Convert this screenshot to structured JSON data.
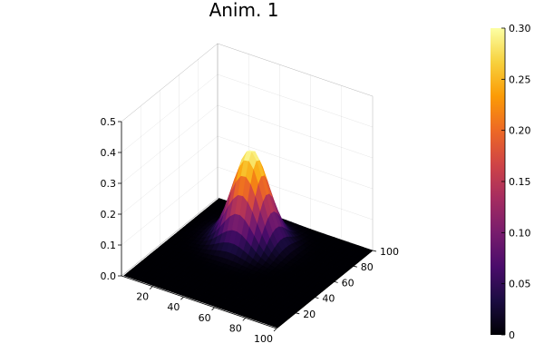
{
  "chart_data": {
    "type": "surface",
    "title": "Anim. 1",
    "xlabel": "",
    "ylabel": "",
    "zlabel": "",
    "grid": true,
    "xlim": [
      1,
      100
    ],
    "ylim": [
      1,
      100
    ],
    "zlim": [
      0,
      0.5
    ],
    "x_ticks": [
      20,
      40,
      60,
      80,
      100
    ],
    "y_ticks": [
      20,
      40,
      60,
      80,
      100
    ],
    "z_ticks": [
      "0.0",
      "0.1",
      "0.2",
      "0.3",
      "0.4",
      "0.5"
    ],
    "surface": {
      "function": "gaussian",
      "peak": 0.3,
      "center_x": 40,
      "center_y": 70,
      "sigma": 10
    },
    "colorbar": {
      "colormap": "inferno",
      "min": 0,
      "max": 0.3,
      "ticks": [
        "0",
        "0.05",
        "0.10",
        "0.15",
        "0.20",
        "0.25",
        "0.30"
      ],
      "colors": [
        "#000004",
        "#1b0c41",
        "#4a0c6b",
        "#781c6d",
        "#a52c60",
        "#cf4446",
        "#ed6925",
        "#fb9b06",
        "#f7d13d",
        "#fcffa4"
      ]
    }
  }
}
